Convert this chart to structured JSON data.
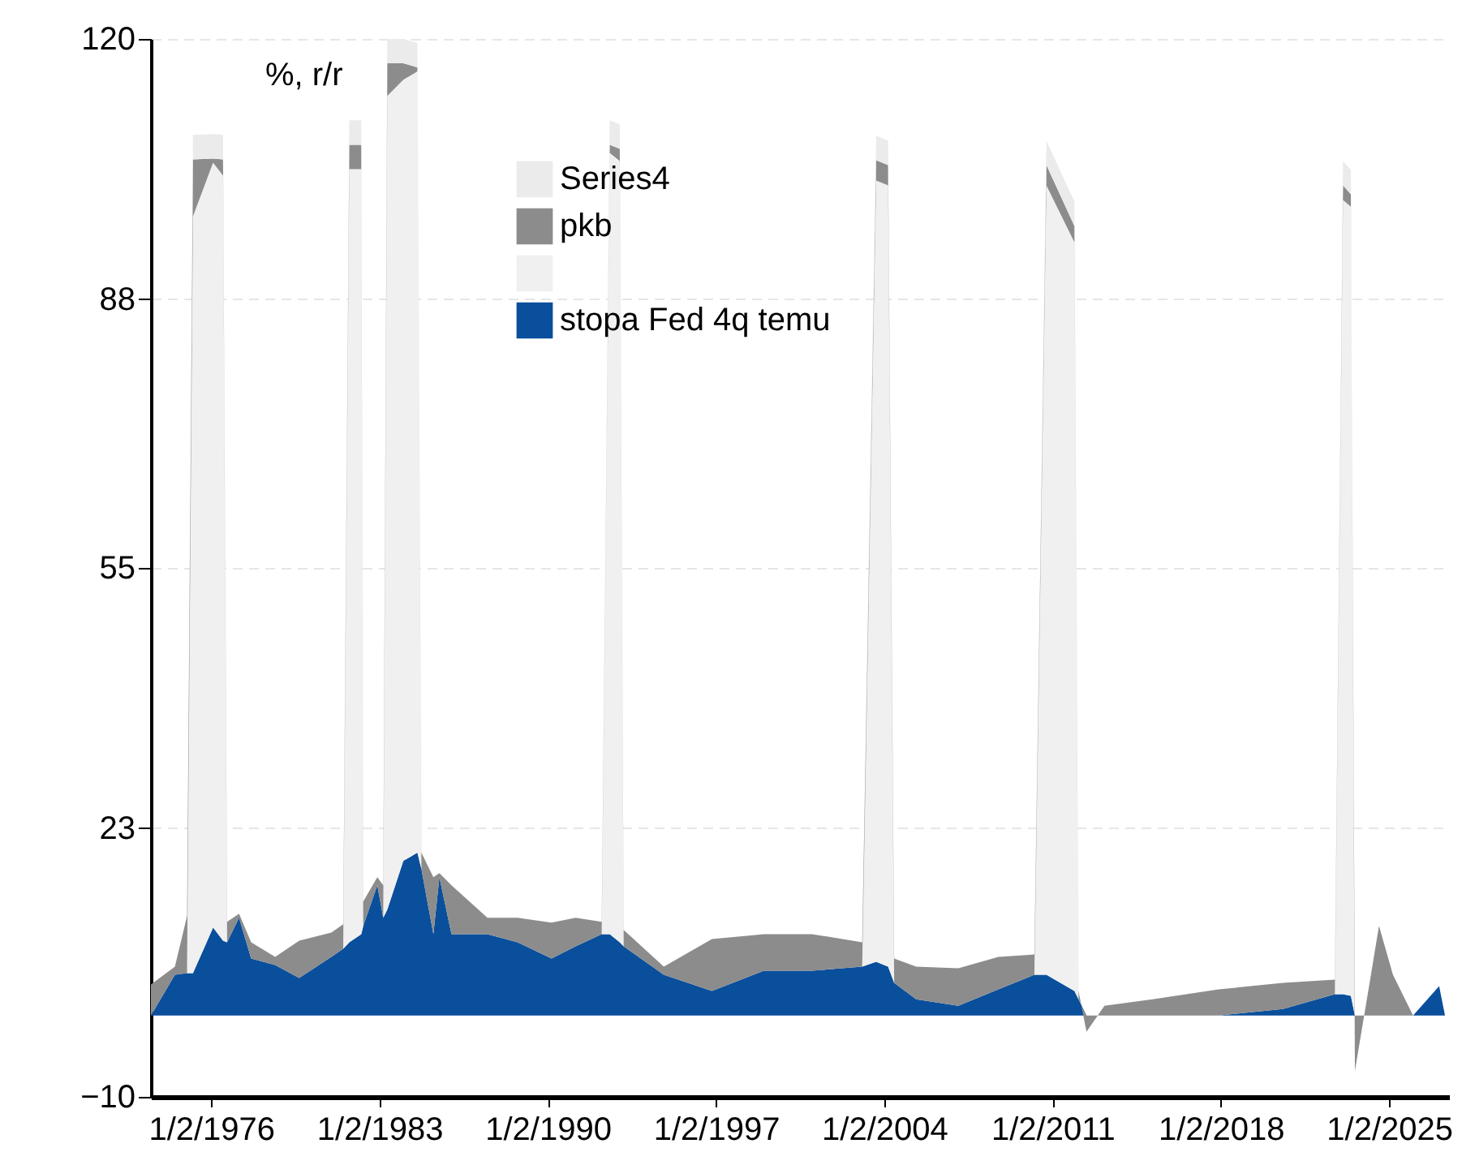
{
  "chart_data": {
    "type": "area",
    "stacked": true,
    "ylabel": "%, r/r",
    "x": [
      "1973-07",
      "1974-07",
      "1975-01",
      "1975-04",
      "1976-02",
      "1976-07",
      "1976-09",
      "1977-03",
      "1977-09",
      "1978-09",
      "1979-09",
      "1981-01",
      "1981-07",
      "1981-10",
      "1982-04",
      "1982-05",
      "1982-12",
      "1983-03",
      "1983-05",
      "1984-01",
      "1984-08",
      "1984-10",
      "1985-04",
      "1985-07",
      "1986-01",
      "1987-07",
      "1988-10",
      "1990-03",
      "1991-03",
      "1992-04",
      "1992-08",
      "1993-01",
      "1993-03",
      "1994-11",
      "1996-11",
      "1999-01",
      "2001-01",
      "2003-02",
      "2003-09",
      "2004-03",
      "2004-06",
      "2005-05",
      "2007-02",
      "2008-10",
      "2010-04",
      "2010-10",
      "2011-12",
      "2012-02",
      "2012-06",
      "2013-03",
      "2015-03",
      "2017-12",
      "2020-08",
      "2022-10",
      "2023-02",
      "2023-06",
      "2023-08",
      "2024-04",
      "2024-08",
      "2025-03",
      "2026-01",
      "2026-09",
      "2027-02",
      "2027-05"
    ],
    "series": [
      {
        "name": "stopa Fed 4q temu",
        "color": "#0a4f9c",
        "values": [
          0,
          5,
          5.2,
          5.2,
          10.8,
          9.2,
          9,
          12,
          7,
          6.2,
          4.6,
          7.2,
          8.2,
          9,
          10,
          11,
          16,
          12,
          13,
          19,
          20,
          18,
          10,
          17,
          10,
          10,
          9,
          7,
          8.5,
          10,
          10,
          9,
          8.5,
          5,
          3,
          5.5,
          5.5,
          6,
          6.6,
          6,
          4,
          2,
          1.2,
          3.2,
          5,
          5,
          3,
          2,
          0,
          0,
          0,
          0,
          0.8,
          2.6,
          2.6,
          2.4,
          0,
          0,
          0,
          0,
          0,
          2.2,
          3.6,
          0
        ]
      },
      {
        "color": "#f0f0f0",
        "values": [
          0,
          0,
          0,
          93,
          94,
          94,
          0,
          0,
          0,
          0,
          0,
          0,
          0,
          95,
          94,
          0,
          0,
          0,
          100,
          96,
          96,
          0,
          0,
          0,
          0,
          0,
          0,
          0,
          0,
          0,
          96,
          96,
          0,
          0,
          0,
          0,
          0,
          0,
          96,
          96,
          0,
          0,
          0,
          0,
          0,
          97,
          92,
          0,
          0,
          0,
          0,
          0,
          0,
          0,
          97.6,
          97,
          0,
          0,
          0,
          0,
          0,
          0,
          0,
          0
        ]
      },
      {
        "name": "pkb",
        "color": "#8c8c8c",
        "values": [
          3.8,
          1,
          7,
          7,
          0.5,
          2,
          2.5,
          0.5,
          2,
          1,
          4.6,
          3,
          3,
          3,
          3,
          3,
          1,
          4,
          4,
          2,
          0.5,
          2,
          7,
          0.5,
          6,
          2,
          3,
          4.4,
          3.5,
          1.5,
          1,
          1.5,
          2,
          1,
          6.4,
          4.5,
          4.5,
          3,
          2.5,
          2.5,
          3,
          4,
          4.6,
          4,
          2.5,
          2.5,
          2,
          1,
          -2,
          1.2,
          2,
          3.2,
          3.2,
          1.8,
          1.8,
          1.5,
          -6.8,
          5,
          11,
          5,
          0,
          0,
          0,
          0
        ]
      },
      {
        "name": "Series4",
        "color": "#ebebeb",
        "values": [
          0,
          0,
          0,
          3,
          3,
          3,
          0,
          0,
          0,
          0,
          0,
          0,
          0,
          3,
          3,
          0,
          0,
          0,
          3,
          3,
          3,
          0,
          0,
          0,
          0,
          0,
          0,
          0,
          0,
          0,
          3,
          3,
          0,
          0,
          0,
          0,
          0,
          0,
          3,
          3,
          0,
          0,
          0,
          0,
          0,
          3,
          3,
          0,
          0,
          0,
          0,
          0,
          0,
          0,
          3,
          3,
          0,
          0,
          0,
          0,
          0,
          0,
          0,
          0
        ]
      }
    ],
    "xlim": [
      "1973-07",
      "2027-07"
    ],
    "xticks": [
      {
        "value": "1976-01-02",
        "label": "1/2/1976"
      },
      {
        "value": "1983-01-02",
        "label": "1/2/1983"
      },
      {
        "value": "1990-01-02",
        "label": "1/2/1990"
      },
      {
        "value": "1997-01-02",
        "label": "1/2/1997"
      },
      {
        "value": "2004-01-02",
        "label": "1/2/2004"
      },
      {
        "value": "2011-01-02",
        "label": "1/2/2011"
      },
      {
        "value": "2018-01-02",
        "label": "1/2/2018"
      },
      {
        "value": "2025-01-02",
        "label": "1/2/2025"
      }
    ],
    "ylim": [
      -10,
      120
    ],
    "yticks": [
      -10,
      23,
      55,
      88,
      120
    ],
    "grid": "y",
    "legend": "top"
  }
}
